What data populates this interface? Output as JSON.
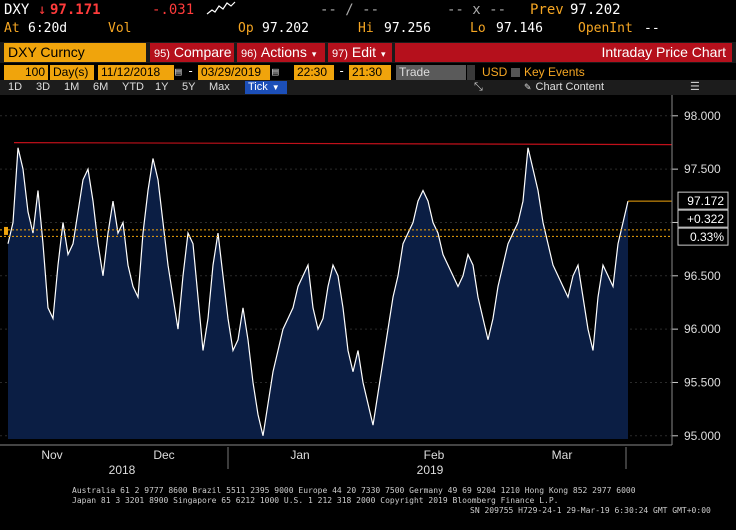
{
  "header": {
    "ticker": "DXY",
    "last_arrow": "↓",
    "last_price": "97.171",
    "net_change": "-.031",
    "range_dash_1": "-- / --",
    "range_dash_2": "-- x --",
    "prev_label": "Prev",
    "prev_value": "97.202",
    "at_label": "At",
    "at_time": "6:20d",
    "vol_label": "Vol",
    "op_label": "Op",
    "op_value": "97.202",
    "hi_label": "Hi",
    "hi_value": "97.256",
    "lo_label": "Lo",
    "lo_value": "97.146",
    "openint_label": "OpenInt",
    "openint_value": "--"
  },
  "toolbar": {
    "security": "DXY Curncy",
    "compare_num": "95)",
    "compare_label": "Compare",
    "actions_num": "96)",
    "actions_label": "Actions",
    "edit_num": "97)",
    "edit_label": "Edit",
    "title": "Intraday Price Chart"
  },
  "params": {
    "period_value": "100",
    "period_unit": "Day(s)",
    "start_date": "11/12/2018",
    "end_date": "03/29/2019",
    "start_time": "22:30",
    "end_time": "21:30",
    "field": "Trade",
    "currency": "USD",
    "key_events": "Key Events"
  },
  "range_tabs": [
    "1D",
    "3D",
    "1M",
    "6M",
    "YTD",
    "1Y",
    "5Y",
    "Max"
  ],
  "tick_label": "Tick",
  "chart_content_label": "Chart Content",
  "colors": {
    "accent_amber": "#f0a40c",
    "toolbar_red": "#b5101c",
    "chart_fill": "#0b1e44",
    "resistance_line": "#c0101a"
  },
  "chart_data": {
    "type": "area",
    "ylim": [
      94.97,
      98.12
    ],
    "yticks": [
      "98.000",
      "97.500",
      "97.000",
      "96.500",
      "96.000",
      "95.500",
      "95.000"
    ],
    "xticks": [
      "Nov",
      "Dec",
      "Jan",
      "Feb",
      "Mar"
    ],
    "years": [
      "2018",
      "2019"
    ],
    "resistance_level": 97.73,
    "reference_level_1": 96.93,
    "reference_level_2": 96.87,
    "last_value_label": "97.172",
    "change_label": "+0.322",
    "pct_label": "0.33%",
    "series": [
      {
        "values": [
          96.8,
          97.0,
          97.7,
          97.5,
          97.1,
          96.9,
          97.3,
          96.8,
          96.2,
          96.1,
          96.6,
          97.0,
          96.7,
          96.8,
          97.1,
          97.4,
          97.5,
          97.2,
          96.8,
          96.5,
          96.9,
          97.2,
          96.9,
          97.0,
          96.6,
          96.4,
          96.3,
          96.9,
          97.3,
          97.6,
          97.4,
          97.0,
          96.6,
          96.3,
          96.0,
          96.5,
          96.9,
          96.8,
          96.3,
          95.8,
          96.1,
          96.6,
          96.9,
          96.5,
          96.1,
          95.8,
          95.9,
          96.2,
          95.9,
          95.5,
          95.2,
          95.0,
          95.3,
          95.6,
          95.8,
          96.0,
          96.1,
          96.2,
          96.4,
          96.5,
          96.6,
          96.2,
          96.0,
          96.1,
          96.4,
          96.6,
          96.5,
          96.2,
          95.8,
          95.6,
          95.8,
          95.5,
          95.3,
          95.1,
          95.4,
          95.7,
          96.0,
          96.3,
          96.5,
          96.8,
          96.9,
          97.0,
          97.2,
          97.3,
          97.2,
          97.0,
          96.9,
          96.7,
          96.6,
          96.5,
          96.4,
          96.5,
          96.7,
          96.6,
          96.3,
          96.1,
          95.9,
          96.1,
          96.4,
          96.6,
          96.8,
          96.9,
          97.0,
          97.2,
          97.7,
          97.5,
          97.3,
          97.0,
          96.8,
          96.6,
          96.5,
          96.4,
          96.3,
          96.5,
          96.6,
          96.3,
          96.0,
          95.8,
          96.3,
          96.6,
          96.5,
          96.4,
          96.8,
          97.0,
          97.2
        ]
      }
    ]
  },
  "footer": {
    "line1": "Australia 61 2 9777 8600 Brazil 5511 2395 9000 Europe 44 20 7330 7500 Germany 49 69 9204 1210 Hong Kong 852 2977 6000",
    "line2": "Japan 81 3 3201 8900        Singapore 65 6212 1000        U.S. 1 212 318 2000          Copyright 2019 Bloomberg Finance L.P.",
    "line3": "SN 209755 H729-24-1 29-Mar-19  6:30:24 GMT  GMT+0:00"
  }
}
